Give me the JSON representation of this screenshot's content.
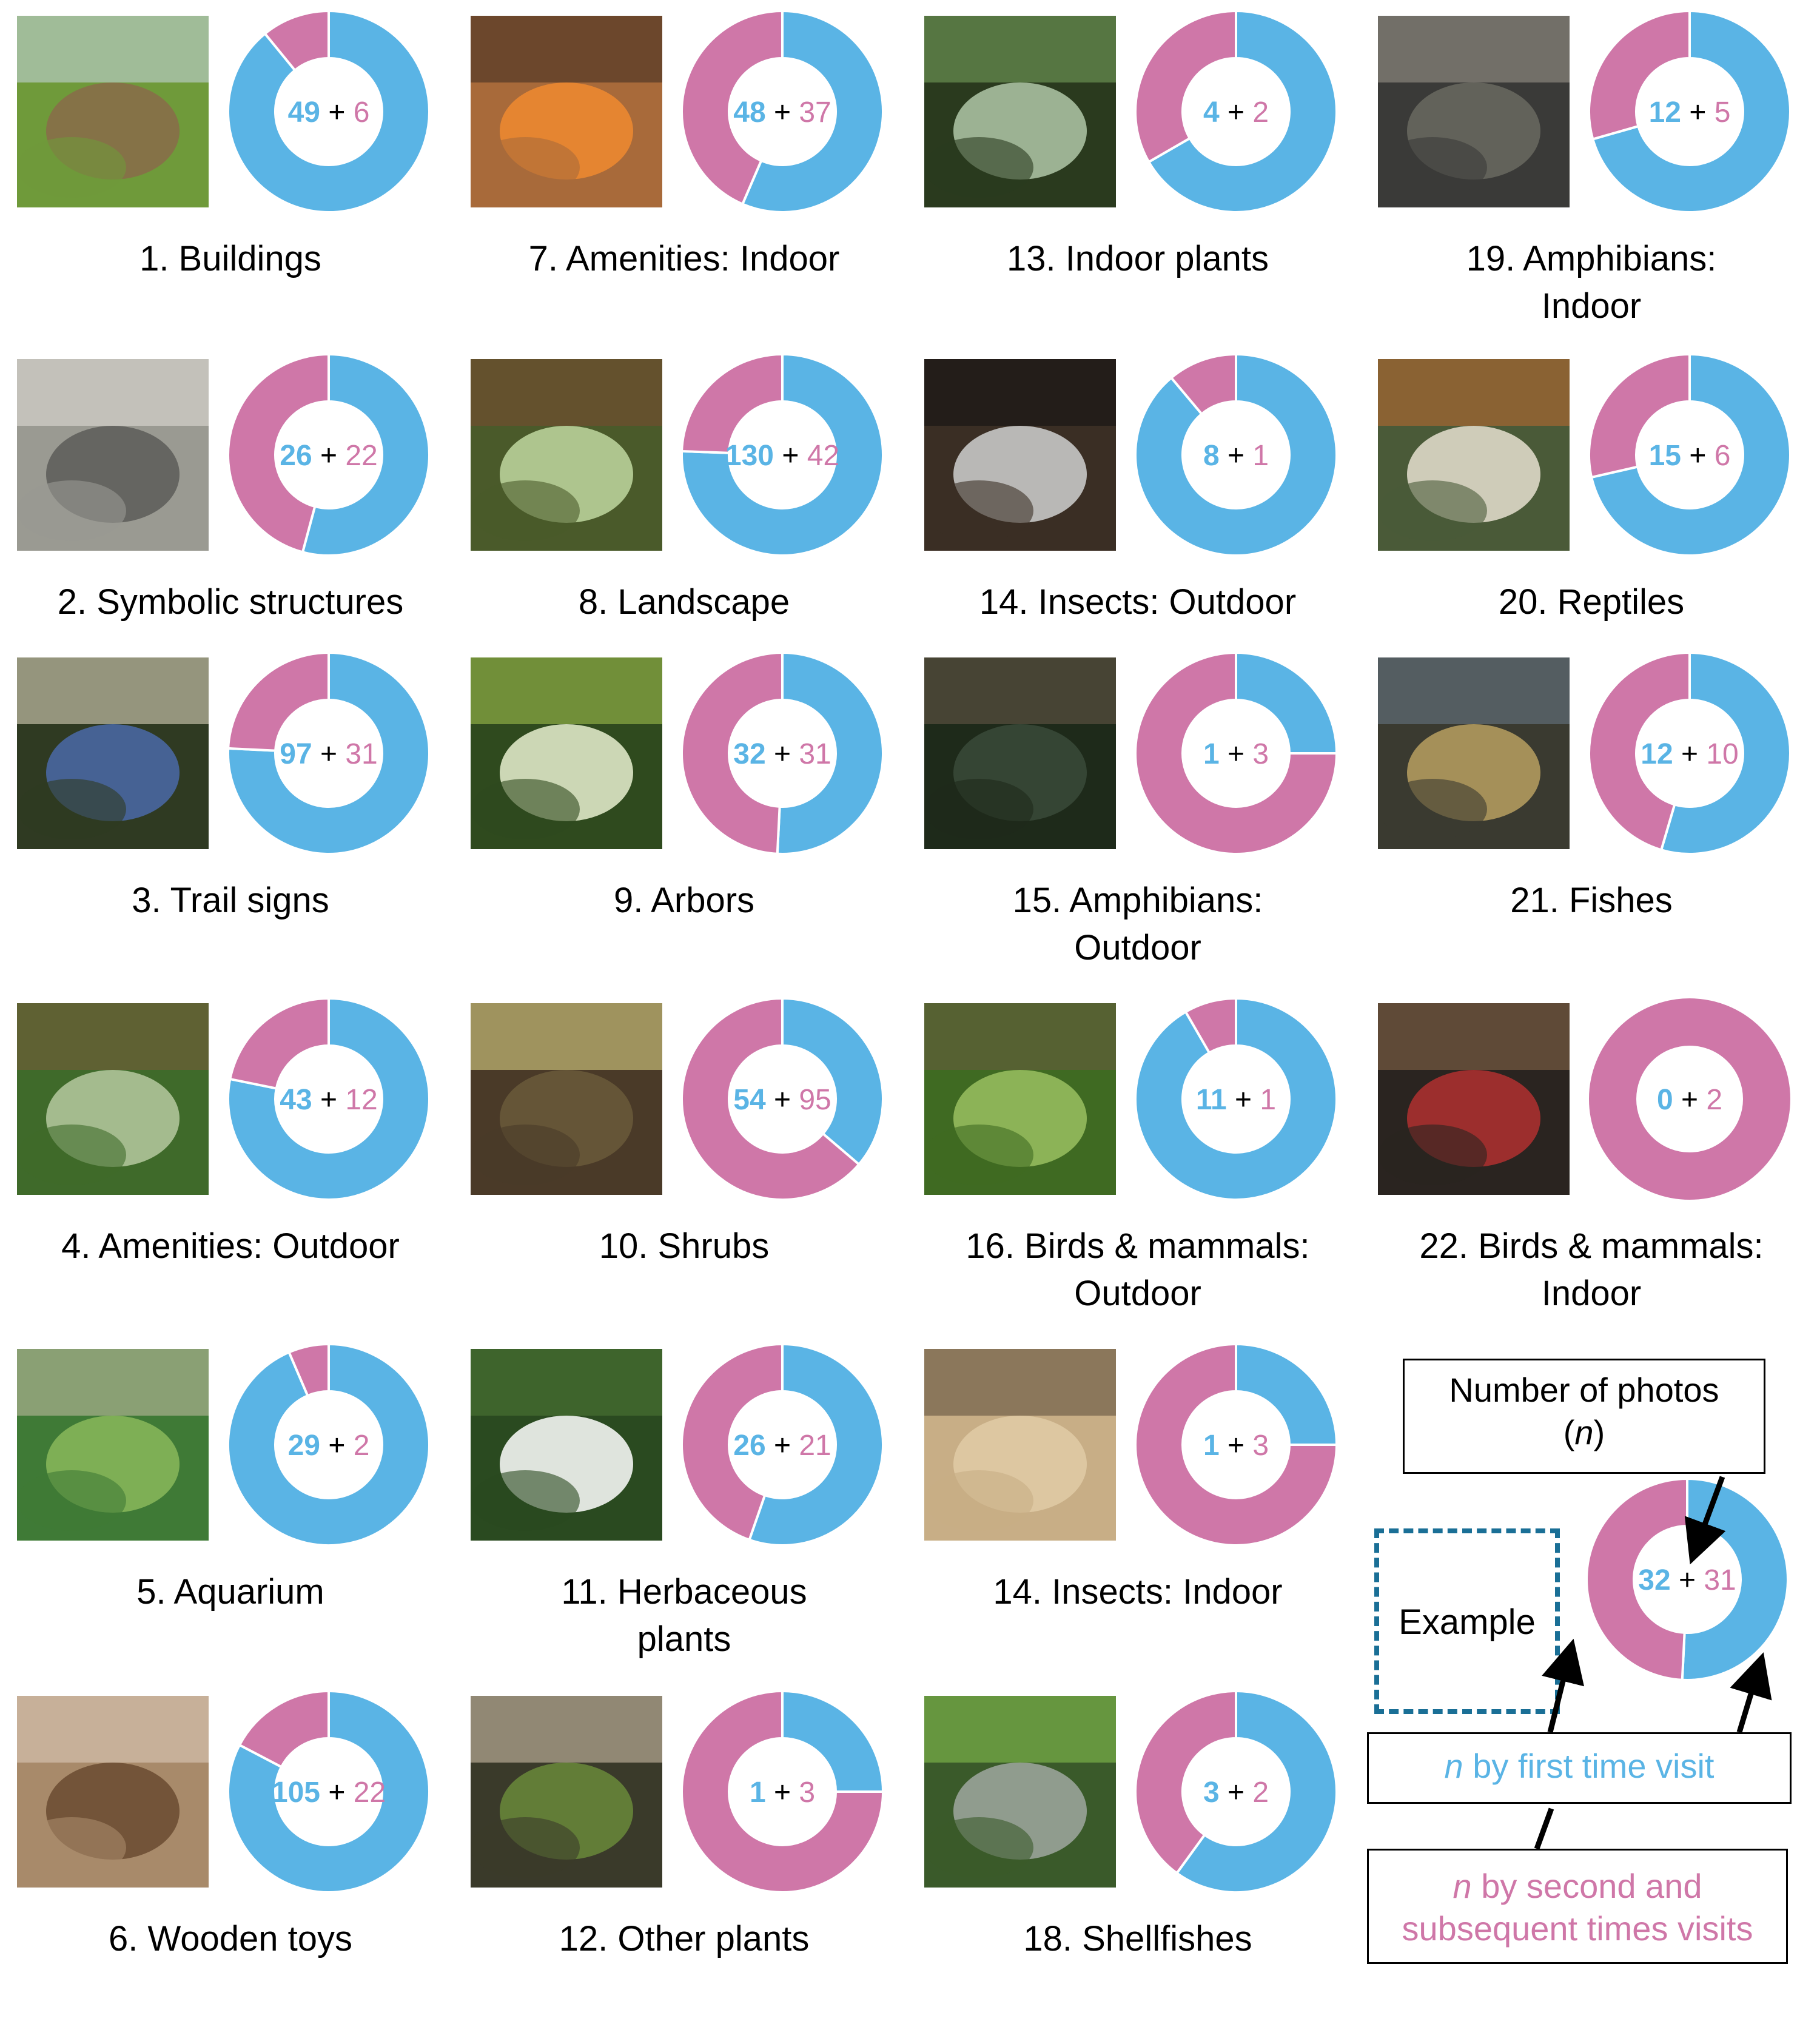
{
  "colors": {
    "first_visit": "#5ab4e5",
    "subsequent_visits": "#cf77a8",
    "example_border": "#1a6f96",
    "arrow": "#000000"
  },
  "chart_data": {
    "type": "pie",
    "variant": "donut",
    "series_keys": [
      "first_visit",
      "subsequent_visits"
    ],
    "categories": [
      {
        "label": "1. Buildings",
        "first": 49,
        "subsequent": 6,
        "photo_icon": "building-photo"
      },
      {
        "label": "2. Symbolic structures",
        "first": 26,
        "subsequent": 22,
        "photo_icon": "owl-statue-photo"
      },
      {
        "label": "3. Trail signs",
        "first": 97,
        "subsequent": 31,
        "photo_icon": "sign-photo"
      },
      {
        "label": "4. Amenities: Outdoor",
        "first": 43,
        "subsequent": 12,
        "photo_icon": "pavilion-photo"
      },
      {
        "label": "5. Aquarium",
        "first": 29,
        "subsequent": 2,
        "photo_icon": "aquarium-photo"
      },
      {
        "label": "6. Wooden toys",
        "first": 105,
        "subsequent": 22,
        "photo_icon": "wooden-toys-photo"
      },
      {
        "label": "7. Amenities: Indoor",
        "first": 48,
        "subsequent": 37,
        "photo_icon": "stove-photo"
      },
      {
        "label": "8. Landscape",
        "first": 130,
        "subsequent": 42,
        "photo_icon": "forest-path-photo"
      },
      {
        "label": "9. Arbors",
        "first": 32,
        "subsequent": 31,
        "photo_icon": "leaves-photo"
      },
      {
        "label": "10. Shrubs",
        "first": 54,
        "subsequent": 95,
        "photo_icon": "flowers-photo"
      },
      {
        "label": "11. Herbaceous\nplants",
        "first": 26,
        "subsequent": 21,
        "photo_icon": "herb-photo"
      },
      {
        "label": "12. Other plants",
        "first": 1,
        "subsequent": 3,
        "photo_icon": "mushroom-photo"
      },
      {
        "label": "13. Indoor plants",
        "first": 4,
        "subsequent": 2,
        "photo_icon": "indoor-plant-photo"
      },
      {
        "label": "14. Insects: Outdoor",
        "first": 8,
        "subsequent": 1,
        "photo_icon": "butterfly-photo"
      },
      {
        "label": "15. Amphibians:\nOutdoor",
        "first": 1,
        "subsequent": 3,
        "photo_icon": "frog-photo"
      },
      {
        "label": "16. Birds & mammals:\nOutdoor",
        "first": 11,
        "subsequent": 1,
        "photo_icon": "owl-photo"
      },
      {
        "label": "14. Insects: Indoor",
        "first": 1,
        "subsequent": 3,
        "photo_icon": "insect-sand-photo"
      },
      {
        "label": "18. Shellfishes",
        "first": 3,
        "subsequent": 2,
        "photo_icon": "fern-photo"
      },
      {
        "label": "19. Amphibians:\nIndoor",
        "first": 12,
        "subsequent": 5,
        "photo_icon": "toad-photo"
      },
      {
        "label": "20. Reptiles",
        "first": 15,
        "subsequent": 6,
        "photo_icon": "newt-photo"
      },
      {
        "label": "21. Fishes",
        "first": 12,
        "subsequent": 10,
        "photo_icon": "catfish-photo"
      },
      {
        "label": "22. Birds & mammals:\nIndoor",
        "first": 0,
        "subsequent": 2,
        "photo_icon": "raccoon-dog-photo"
      }
    ],
    "example": {
      "first": 32,
      "subsequent": 31
    }
  },
  "legend": {
    "example_label": "Example",
    "number_of_photos": "Number of photos",
    "n_paren_open": "(",
    "n_symbol": "n",
    "n_paren_close": ")",
    "first_n": "n",
    "first_rest": " by first time visit",
    "second_n": "n",
    "second_rest": " by second  and",
    "second_line2": "subsequent times visits"
  }
}
